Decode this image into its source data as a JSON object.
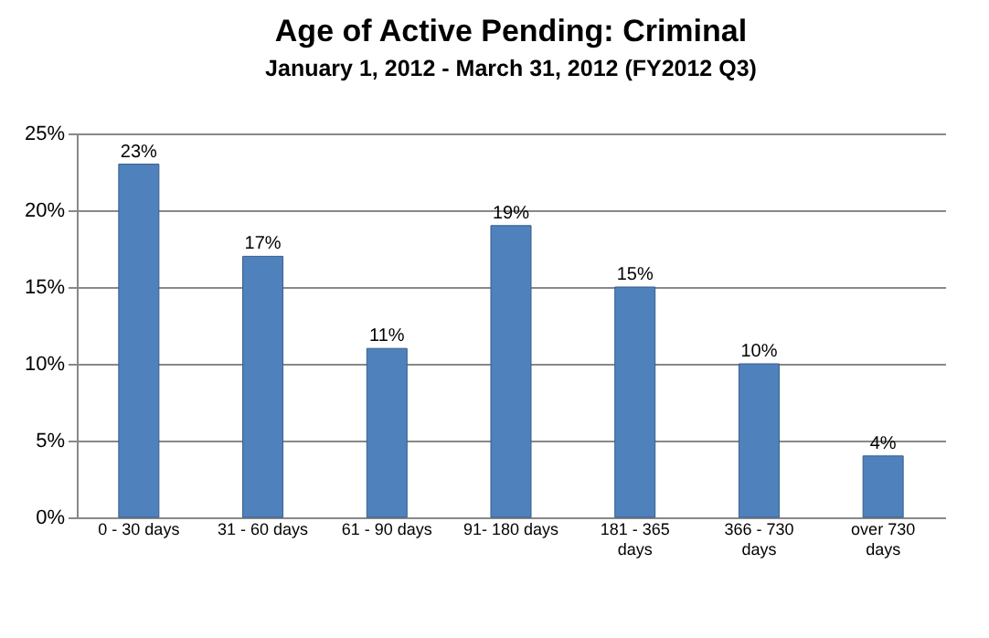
{
  "chart_data": {
    "type": "bar",
    "title": "Age of Active Pending: Criminal",
    "subtitle": "January 1, 2012 - March 31, 2012 (FY2012 Q3)",
    "categories": [
      "0 - 30 days",
      "31 - 60 days",
      "61 - 90 days",
      "91- 180 days",
      "181 - 365 days",
      "366 - 730 days",
      "over 730 days"
    ],
    "values": [
      23,
      17,
      11,
      19,
      15,
      10,
      4
    ],
    "value_labels": [
      "23%",
      "17%",
      "11%",
      "19%",
      "15%",
      "10%",
      "4%"
    ],
    "color": "#4f81bd",
    "ylim": [
      0,
      25
    ],
    "yticks": [
      {
        "value": 0,
        "label": "0%"
      },
      {
        "value": 5,
        "label": "5%"
      },
      {
        "value": 10,
        "label": "10%"
      },
      {
        "value": 15,
        "label": "15%"
      },
      {
        "value": 20,
        "label": "20%"
      },
      {
        "value": 25,
        "label": "25%"
      }
    ],
    "grid": "y"
  }
}
